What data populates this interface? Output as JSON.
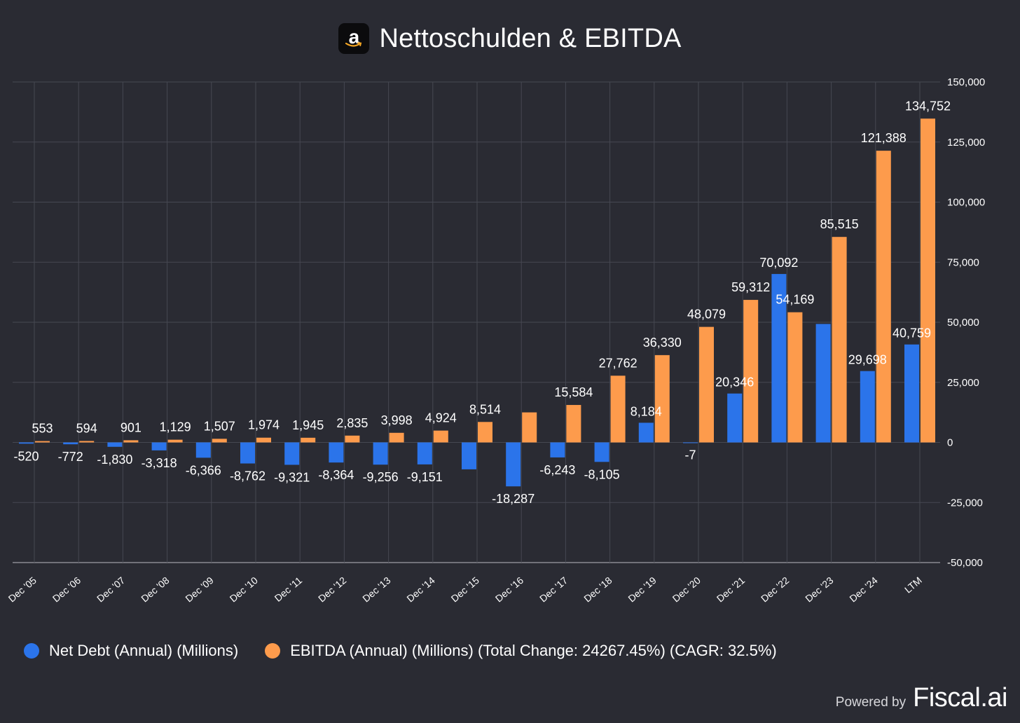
{
  "title": "Nettoschulden & EBITDA",
  "logo": {
    "icon": "amazon-logo-icon",
    "glyph": "a"
  },
  "colors": {
    "background": "#2a2b33",
    "net_debt": "#2b74ea",
    "ebitda": "#fd9b4c",
    "grid": "#464852",
    "text": "#ffffff"
  },
  "legend": {
    "net_debt": "Net Debt (Annual) (Millions)",
    "ebitda": "EBITDA (Annual) (Millions) (Total Change: 24267.45%) (CAGR: 32.5%)"
  },
  "footer": {
    "powered_by": "Powered by",
    "brand": "Fiscal.ai"
  },
  "chart_data": {
    "type": "bar",
    "categories": [
      "Dec '05",
      "Dec '06",
      "Dec '07",
      "Dec '08",
      "Dec '09",
      "Dec '10",
      "Dec '11",
      "Dec '12",
      "Dec '13",
      "Dec '14",
      "Dec '15",
      "Dec '16",
      "Dec '17",
      "Dec '18",
      "Dec '19",
      "Dec '20",
      "Dec '21",
      "Dec '22",
      "Dec '23",
      "Dec '24",
      "LTM"
    ],
    "series": [
      {
        "name": "Net Debt (Annual) (Millions)",
        "values": [
          -520,
          -772,
          -1830,
          -3318,
          -6366,
          -8762,
          -9321,
          -8364,
          -9256,
          -9151,
          -11200,
          -18287,
          -6243,
          -8105,
          8184,
          -7,
          20346,
          70092,
          49300,
          29698,
          40759
        ],
        "labels": [
          "-520",
          "-772",
          "-1,830",
          "-3,318",
          "-6,366",
          "-8,762",
          "-9,321",
          "-8,364",
          "-9,256",
          "-9,151",
          "",
          "-18,287",
          "-6,243",
          "-8,105",
          "8,184",
          "-7",
          "20,346",
          "70,092",
          "",
          "29,698",
          "40,759"
        ]
      },
      {
        "name": "EBITDA (Annual) (Millions) (Total Change: 24267.45%) (CAGR: 32.5%)",
        "values": [
          553,
          594,
          901,
          1129,
          1507,
          1974,
          1945,
          2835,
          3998,
          4924,
          8514,
          12500,
          15584,
          27762,
          36330,
          48079,
          59312,
          54169,
          85515,
          121388,
          134752
        ],
        "labels": [
          "553",
          "594",
          "901",
          "1,129",
          "1,507",
          "1,974",
          "1,945",
          "2,835",
          "3,998",
          "4,924",
          "8,514",
          "",
          "15,584",
          "27,762",
          "36,330",
          "48,079",
          "59,312",
          "54,169",
          "85,515",
          "121,388",
          "134,752"
        ]
      }
    ],
    "y_axis": {
      "position": "right",
      "min": -50000,
      "max": 150000,
      "ticks": [
        150000,
        125000,
        100000,
        75000,
        50000,
        25000,
        0,
        -25000,
        -50000
      ],
      "tick_labels": [
        "150,000",
        "125,000",
        "100,000",
        "75,000",
        "50,000",
        "25,000",
        "0",
        "-25,000",
        "-50,000"
      ]
    },
    "grid": true,
    "legend_position": "bottom-left"
  }
}
